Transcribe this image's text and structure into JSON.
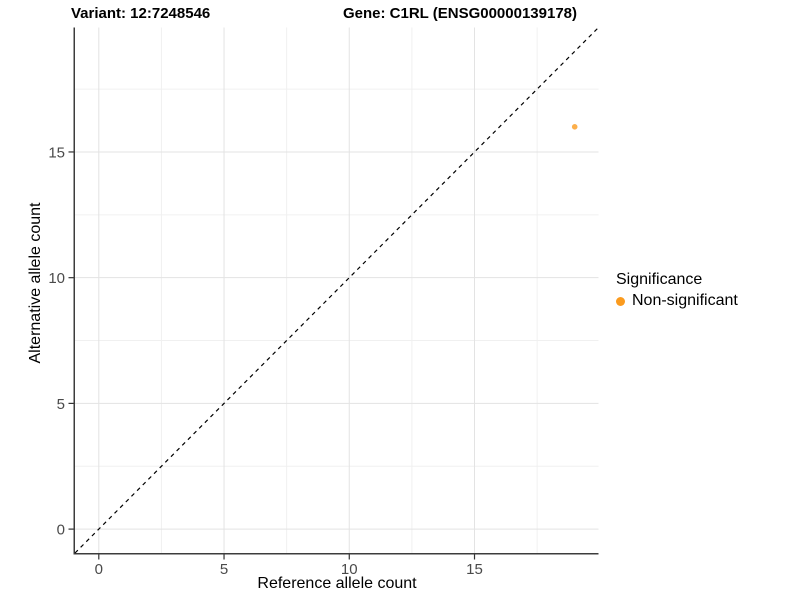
{
  "chart_data": {
    "type": "scatter",
    "titles": {
      "left": "Variant: 12:7248546",
      "right": "Gene: C1RL (ENSG00000139178)"
    },
    "xlabel": "Reference allele count",
    "ylabel": "Alternative allele count",
    "xlim": [
      -0.95,
      19.95
    ],
    "ylim": [
      -0.95,
      19.95
    ],
    "x_major_ticks": [
      0,
      5,
      10,
      15
    ],
    "y_major_ticks": [
      0,
      5,
      10,
      15
    ],
    "x_minor_ticks": [
      2.5,
      7.5,
      12.5,
      17.5
    ],
    "y_minor_ticks": [
      2.5,
      7.5,
      12.5,
      17.5
    ],
    "grid": true,
    "identity_line": {
      "style": "dashed",
      "from": [
        -0.95,
        -0.95
      ],
      "to": [
        19.95,
        19.95
      ],
      "color": "#000000"
    },
    "series": [
      {
        "name": "Non-significant",
        "color": "#FB9B1E",
        "point_radius": 2.8,
        "point_opacity": 0.8,
        "points": [
          {
            "x": 19,
            "y": 16
          }
        ]
      }
    ],
    "legend": {
      "title": "Significance",
      "position": "right",
      "entries": [
        "Non-significant"
      ]
    },
    "colors": {
      "grid_major": "#E3E3E3",
      "grid_minor": "#F0F0F0",
      "axis_line": "#3C3C3C",
      "tick_mark": "#333333",
      "tick_label": "#4A4A4A",
      "background": "#FFFFFF"
    }
  }
}
